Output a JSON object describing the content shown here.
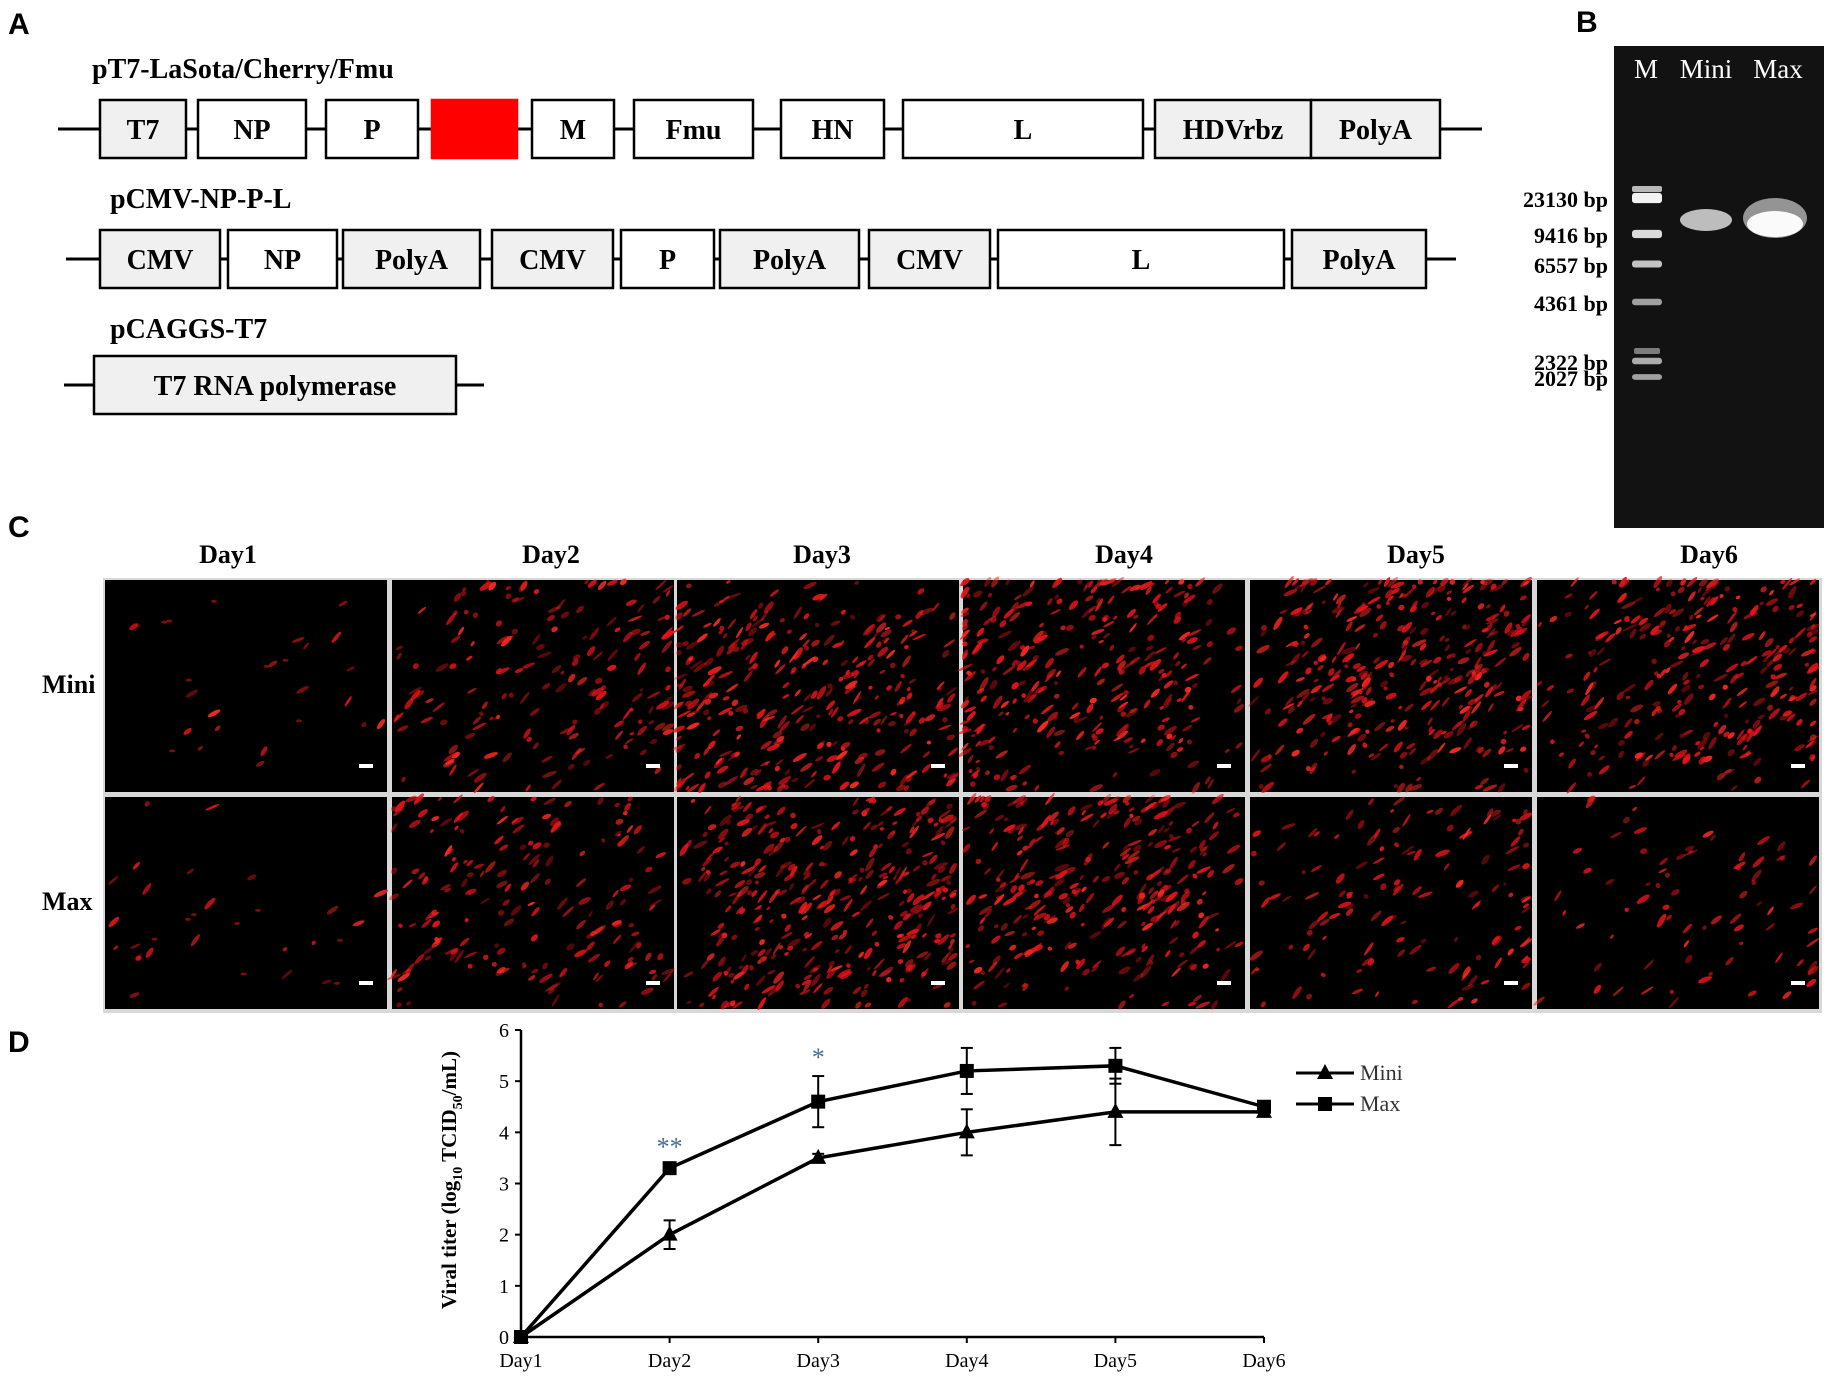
{
  "panels": {
    "a": "A",
    "b": "B",
    "c": "C",
    "d": "D"
  },
  "constructs": [
    {
      "name": "pT7-LaSota/Cherry/Fmu",
      "blocks": [
        {
          "label": "T7",
          "fill": "#f0f0f0"
        },
        {
          "label": "NP",
          "fill": "#ffffff"
        },
        {
          "label": "P",
          "fill": "#ffffff"
        },
        {
          "label": "",
          "fill": "#ff0000"
        },
        {
          "label": "M",
          "fill": "#ffffff"
        },
        {
          "label": "Fmu",
          "fill": "#ffffff"
        },
        {
          "label": "HN",
          "fill": "#ffffff"
        },
        {
          "label": "L",
          "fill": "#ffffff"
        },
        {
          "label": "HDVrbz",
          "fill": "#f0f0f0"
        },
        {
          "label": "PolyA",
          "fill": "#f0f0f0"
        }
      ]
    },
    {
      "name": "pCMV-NP-P-L",
      "blocks": [
        {
          "label": "CMV",
          "fill": "#f0f0f0"
        },
        {
          "label": "NP",
          "fill": "#ffffff"
        },
        {
          "label": "PolyA",
          "fill": "#f0f0f0"
        },
        {
          "label": "CMV",
          "fill": "#f0f0f0"
        },
        {
          "label": "P",
          "fill": "#ffffff"
        },
        {
          "label": "PolyA",
          "fill": "#f0f0f0"
        },
        {
          "label": "CMV",
          "fill": "#f0f0f0"
        },
        {
          "label": "L",
          "fill": "#ffffff"
        },
        {
          "label": "PolyA",
          "fill": "#f0f0f0"
        }
      ]
    },
    {
      "name": "pCAGGS-T7",
      "blocks": [
        {
          "label": "T7 RNA   polymerase",
          "fill": "#f0f0f0"
        }
      ]
    }
  ],
  "gel": {
    "lanes": [
      "M",
      "Mini",
      "Max"
    ],
    "ladder": [
      "23130  bp",
      "9416  bp",
      "6557  bp",
      "4361  bp",
      "2322  bp",
      "2027  bp"
    ]
  },
  "microscopy": {
    "days": [
      "Day1",
      "Day2",
      "Day3",
      "Day4",
      "Day5",
      "Day6"
    ],
    "rows": [
      "Mini",
      "Max"
    ],
    "intensity": [
      [
        0.05,
        0.45,
        0.85,
        0.8,
        0.9,
        0.75
      ],
      [
        0.06,
        0.5,
        0.95,
        0.8,
        0.35,
        0.2
      ]
    ]
  },
  "chart_data": {
    "type": "line",
    "categories": [
      "Day1",
      "Day2",
      "Day3",
      "Day4",
      "Day5",
      "Day6"
    ],
    "ylabel_main": "Viral titer (log",
    "ylabel_sub1": "10",
    "ylabel_mid": " TCID",
    "ylabel_sub2": "50",
    "ylabel_end": "/mL)",
    "ylim": [
      0,
      6
    ],
    "yticks": [
      "0",
      "1",
      "2",
      "3",
      "4",
      "5",
      "6"
    ],
    "series": [
      {
        "name": "Mini",
        "marker": "triangle",
        "values": [
          0,
          2.0,
          3.5,
          4.0,
          4.4,
          4.4
        ],
        "errors": [
          0,
          0.28,
          0.08,
          0.45,
          0.65,
          0.08
        ]
      },
      {
        "name": "Max",
        "marker": "square",
        "values": [
          0,
          3.3,
          4.6,
          5.2,
          5.3,
          4.5
        ],
        "errors": [
          0,
          0.05,
          0.5,
          0.45,
          0.35,
          0.05
        ]
      }
    ],
    "annotations": [
      {
        "category": "Day2",
        "text": "**"
      },
      {
        "category": "Day3",
        "text": "*"
      }
    ],
    "legend_position": "top-right",
    "grid": false
  }
}
